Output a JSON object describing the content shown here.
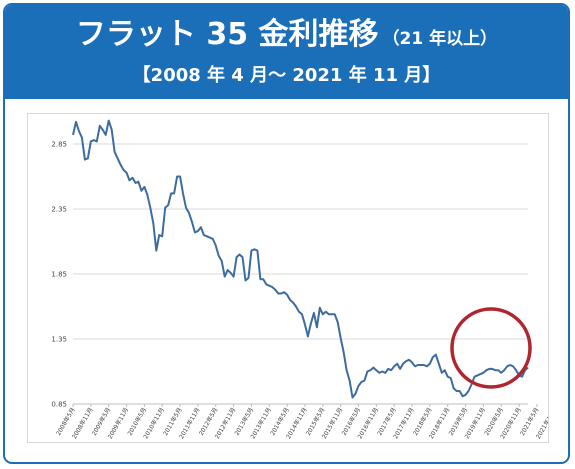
{
  "header": {
    "title": "フラット 35 金利推移",
    "subtitle": "（21 年以上）",
    "period": "【2008 年 4 月～ 2021 年 11 月】"
  },
  "colors": {
    "header_bg": "#1b6fb8",
    "line": "#3d6c9f",
    "gridline": "#d9d9d9",
    "highlight_circle": "#b0262e"
  },
  "chart_data": {
    "type": "line",
    "title": "",
    "xlabel": "",
    "ylabel": "",
    "ylim": [
      0.85,
      2.95
    ],
    "yticks": [
      0.85,
      1.35,
      1.85,
      2.35,
      2.85
    ],
    "grid": true,
    "legend": "none",
    "x_tick_labels": [
      "2008年5月",
      "2008年11月",
      "2009年5月",
      "2009年11月",
      "2010年5月",
      "2010年11月",
      "2011年5月",
      "2011年11月",
      "2012年5月",
      "2012年11月",
      "2013年5月",
      "2013年11月",
      "2014年5月",
      "2014年11月",
      "2015年5月",
      "2015年11月",
      "2016年5月",
      "2016年11月",
      "2017年5月",
      "2017年11月",
      "2018年5月",
      "2018年11月",
      "2019年5月",
      "2019年11月",
      "2020年5月",
      "2020年11月",
      "2021年5月",
      "2021年11月"
    ],
    "series": [
      {
        "values": [
          2.92,
          3.02,
          2.95,
          2.9,
          2.73,
          2.74,
          2.87,
          2.88,
          2.87,
          2.99,
          2.96,
          2.92,
          3.03,
          2.96,
          2.79,
          2.74,
          2.69,
          2.65,
          2.63,
          2.57,
          2.59,
          2.55,
          2.56,
          2.49,
          2.52,
          2.46,
          2.36,
          2.24,
          2.03,
          2.15,
          2.14,
          2.36,
          2.38,
          2.47,
          2.47,
          2.6,
          2.6,
          2.47,
          2.36,
          2.32,
          2.25,
          2.17,
          2.18,
          2.21,
          2.15,
          2.14,
          2.13,
          2.12,
          2.07,
          1.99,
          1.95,
          1.83,
          1.88,
          1.86,
          1.83,
          1.98,
          2.0,
          1.98,
          1.8,
          1.82,
          2.03,
          2.04,
          2.03,
          1.81,
          1.81,
          1.77,
          1.76,
          1.75,
          1.73,
          1.7,
          1.7,
          1.71,
          1.69,
          1.65,
          1.63,
          1.6,
          1.56,
          1.54,
          1.46,
          1.37,
          1.47,
          1.55,
          1.44,
          1.59,
          1.54,
          1.56,
          1.54,
          1.54,
          1.54,
          1.48,
          1.36,
          1.25,
          1.11,
          1.03,
          0.9,
          0.93,
          0.99,
          1.02,
          1.03,
          1.1,
          1.11,
          1.13,
          1.11,
          1.09,
          1.1,
          1.09,
          1.12,
          1.11,
          1.14,
          1.16,
          1.12,
          1.16,
          1.18,
          1.19,
          1.17,
          1.14,
          1.15,
          1.15,
          1.15,
          1.14,
          1.16,
          1.21,
          1.23,
          1.16,
          1.09,
          1.11,
          1.06,
          1.05,
          0.97,
          0.95,
          0.95,
          0.91,
          0.92,
          0.95,
          1.0,
          1.06,
          1.07,
          1.08,
          1.09,
          1.11,
          1.12,
          1.12,
          1.11,
          1.11,
          1.09,
          1.11,
          1.14,
          1.15,
          1.14,
          1.11,
          1.07,
          1.06,
          1.11,
          1.13
        ]
      }
    ]
  }
}
